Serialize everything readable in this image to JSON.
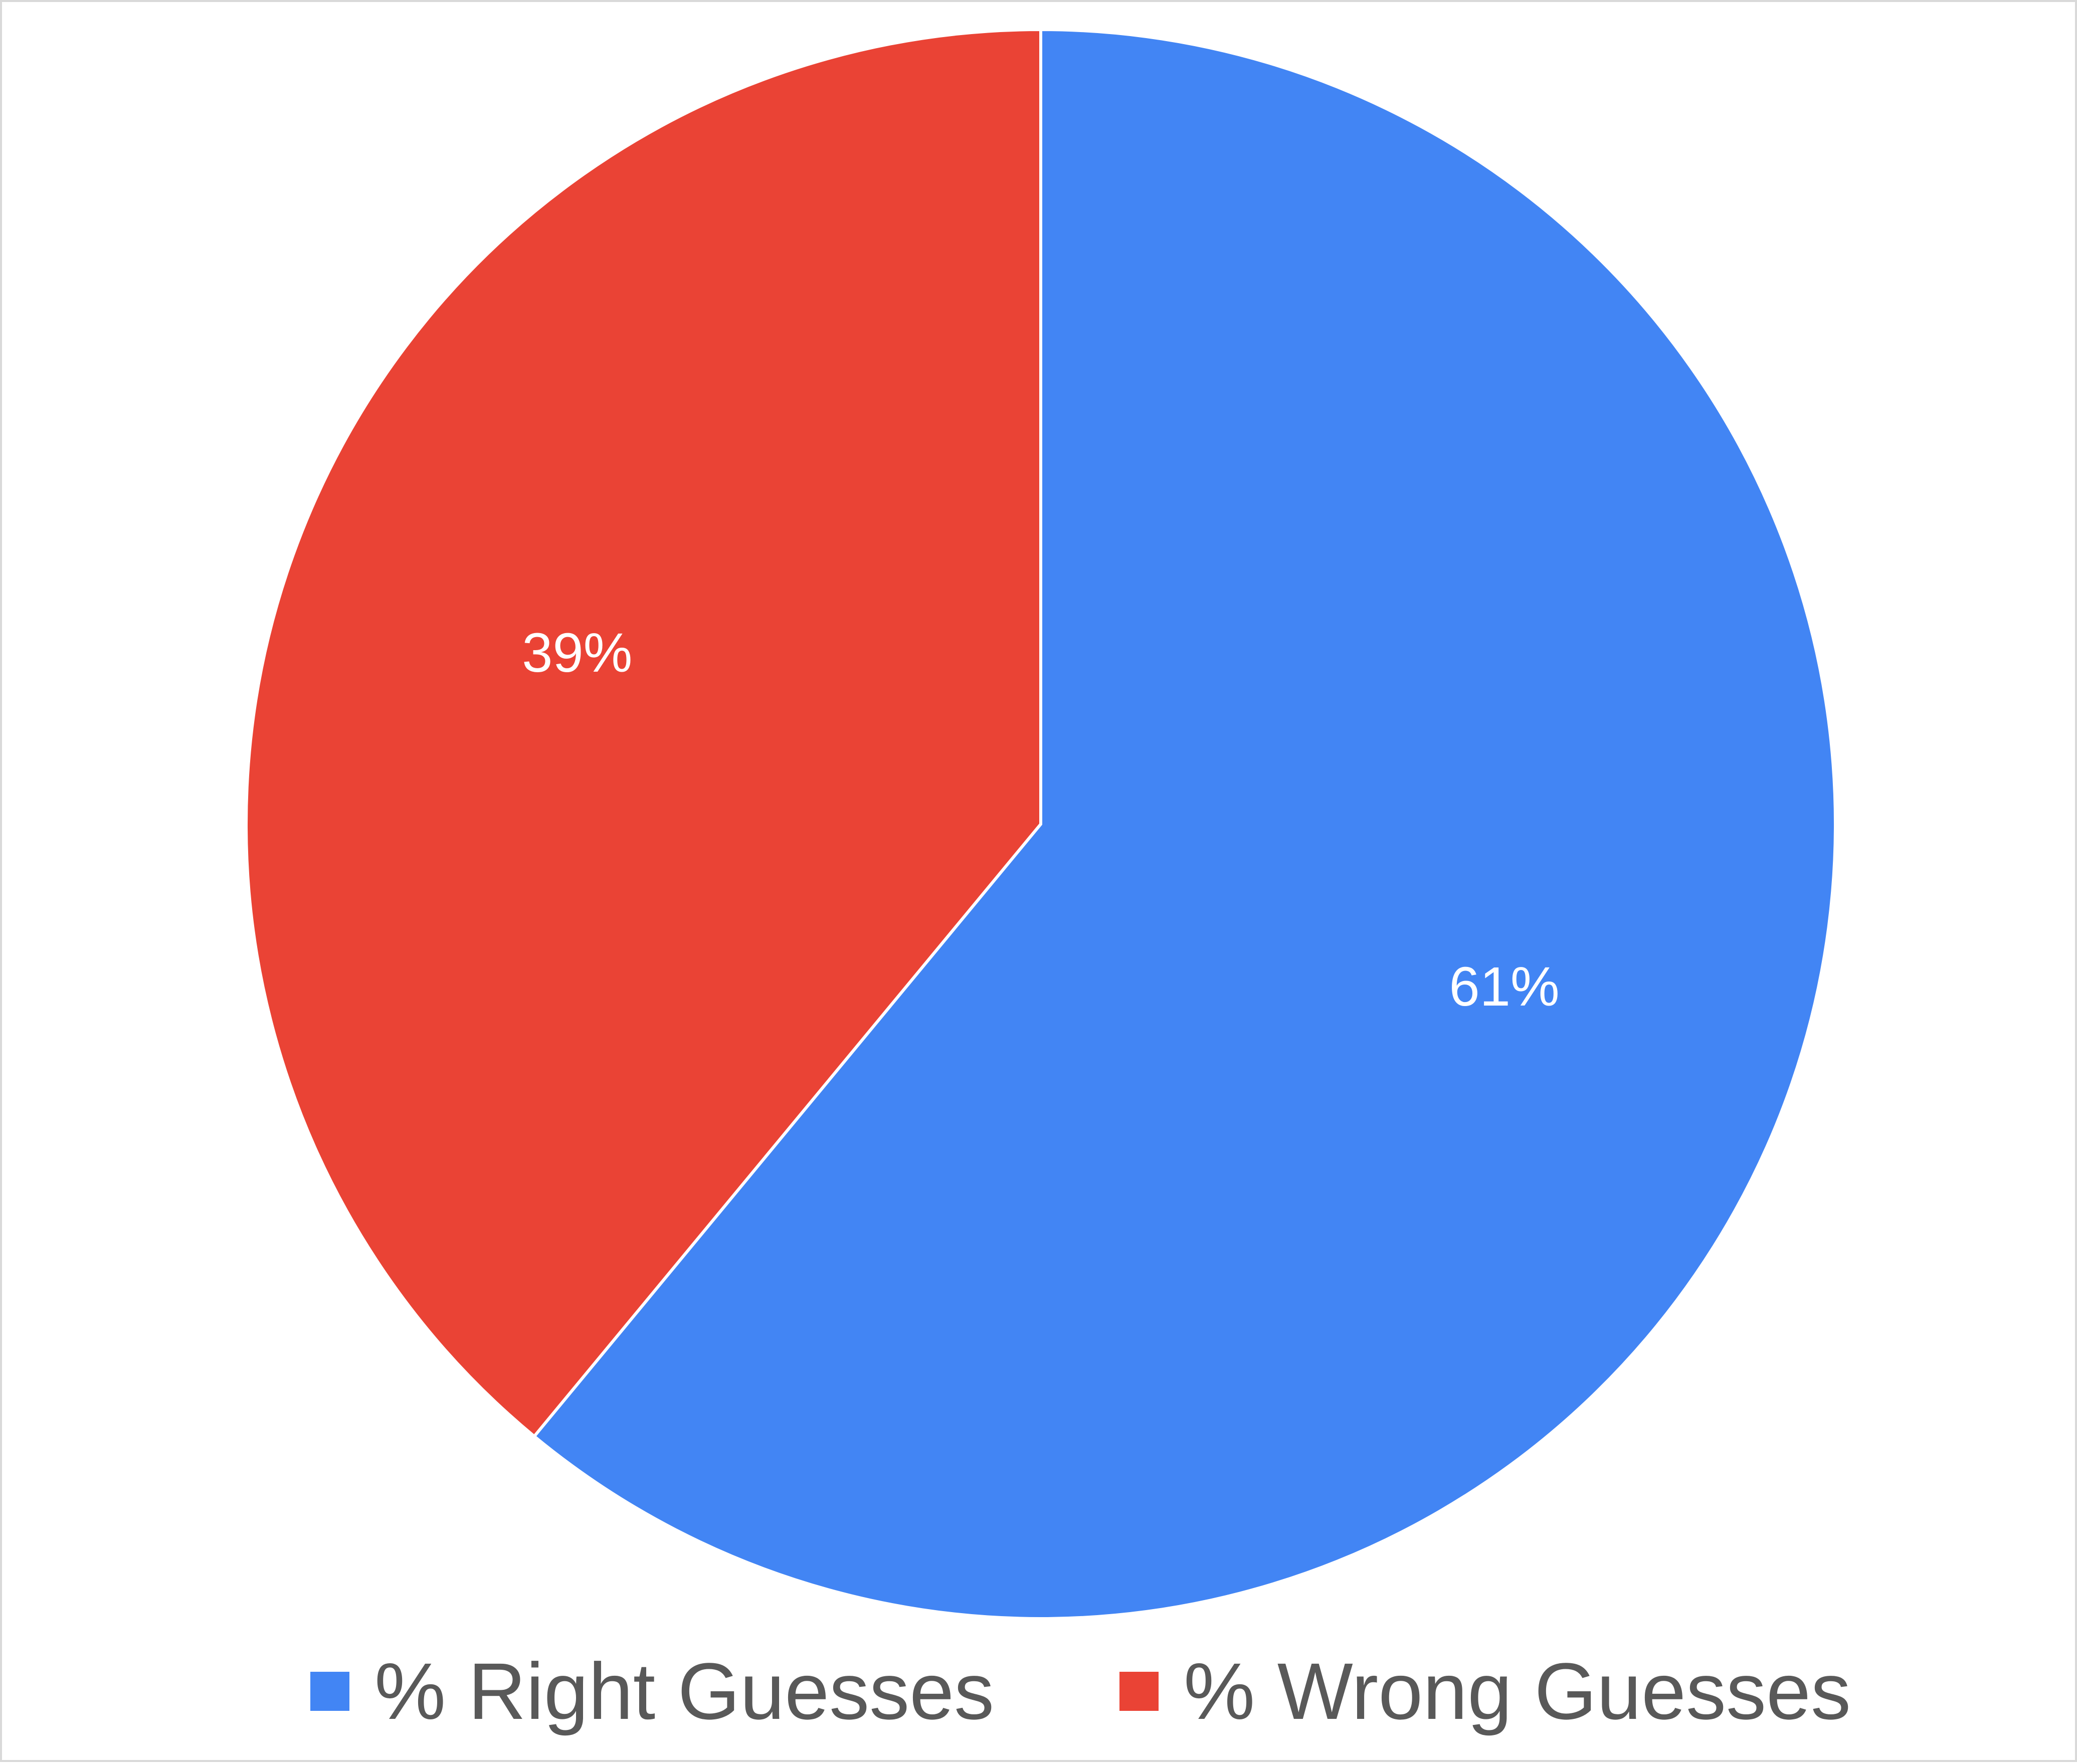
{
  "chart_data": {
    "type": "pie",
    "title": "",
    "categories": [
      "% Right Guesses",
      "% Wrong Guesses"
    ],
    "values": [
      61,
      39
    ],
    "data_labels": [
      "61%",
      "39%"
    ],
    "colors": [
      "#4285f4",
      "#ea4335"
    ],
    "start_angle": "12 o'clock",
    "direction": "clockwise",
    "legend_position": "bottom"
  }
}
